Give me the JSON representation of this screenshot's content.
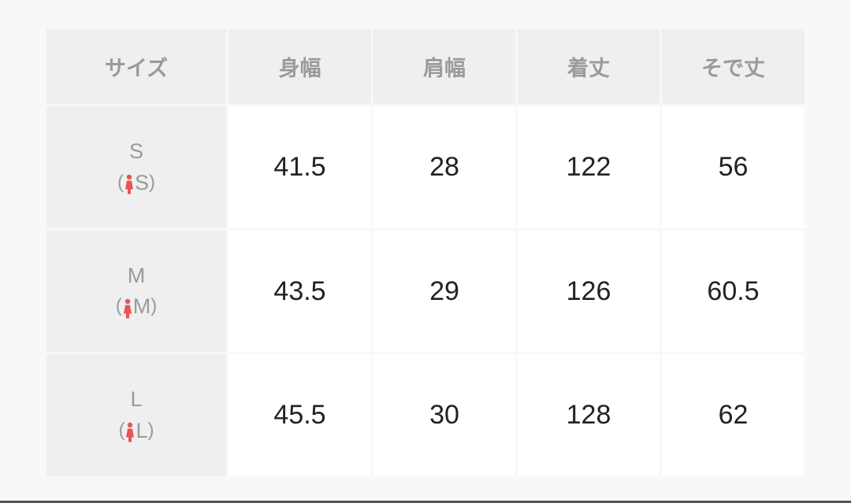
{
  "headers": [
    "サイズ",
    "身幅",
    "肩幅",
    "着丈",
    "そで丈"
  ],
  "rows": [
    {
      "size": "S",
      "ladies": "S",
      "values": [
        "41.5",
        "28",
        "122",
        "56"
      ]
    },
    {
      "size": "M",
      "ladies": "M",
      "values": [
        "43.5",
        "29",
        "126",
        "60.5"
      ]
    },
    {
      "size": "L",
      "ladies": "L",
      "values": [
        "45.5",
        "30",
        "128",
        "62"
      ]
    }
  ],
  "icon": "woman-icon",
  "colors": {
    "woman_icon": "#e85555",
    "header_bg": "#efefef",
    "text_muted": "#9a9a9a"
  }
}
